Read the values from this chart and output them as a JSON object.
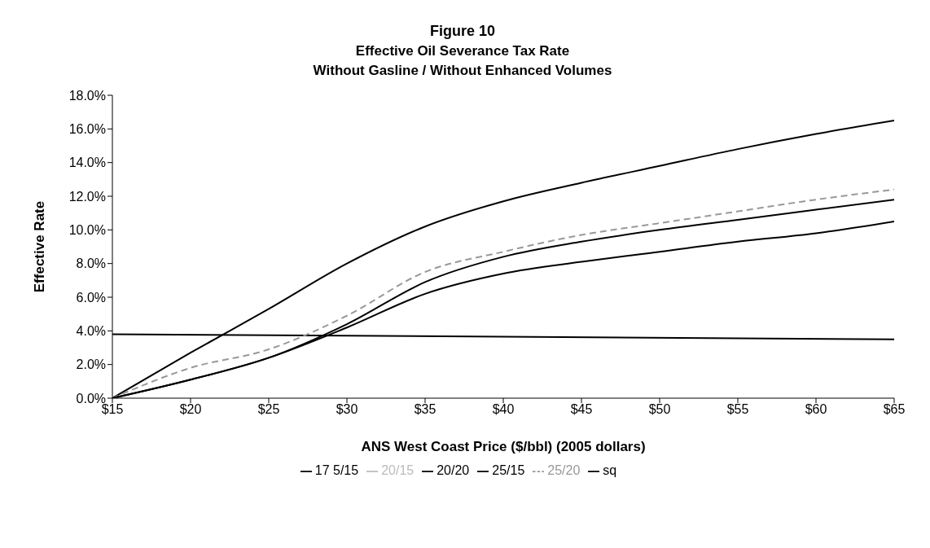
{
  "chart_data": {
    "type": "line",
    "title": "Figure 10",
    "subtitle": "Effective Oil Severance Tax Rate\nWithout Gasline / Without Enhanced Volumes",
    "xlabel": "ANS West Coast Price ($/bbl) (2005 dollars)",
    "ylabel": "Effective Rate",
    "x": [
      15,
      20,
      25,
      30,
      35,
      40,
      45,
      50,
      55,
      60,
      65
    ],
    "series": [
      {
        "name": "sq",
        "color": "#000000",
        "x": [
          15,
          65
        ],
        "values": [
          3.8,
          3.5
        ]
      },
      {
        "name": "25/15",
        "color": "#000000",
        "values": [
          0,
          2.7,
          5.3,
          8.0,
          10.2,
          11.7,
          12.8,
          13.8,
          14.8,
          15.7,
          16.5
        ]
      },
      {
        "name": "25/20",
        "color": "#999999",
        "line_style": "dashed",
        "values": [
          0,
          1.8,
          2.9,
          4.9,
          7.5,
          8.7,
          9.7,
          10.4,
          11.1,
          11.8,
          12.4
        ]
      },
      {
        "name": "20/15",
        "color": "#bbbbbb",
        "values": [
          null,
          null,
          null,
          null,
          null,
          null,
          null,
          null,
          null,
          null,
          null
        ]
      },
      {
        "name": "20/20",
        "color": "#000000",
        "values": [
          0,
          1.1,
          2.4,
          4.4,
          6.9,
          8.4,
          9.3,
          10.0,
          10.6,
          11.2,
          11.8
        ]
      },
      {
        "name": "17 5/15",
        "color": "#000000",
        "values": [
          0,
          1.1,
          2.4,
          4.2,
          6.2,
          7.4,
          8.1,
          8.7,
          9.3,
          9.8,
          10.5
        ]
      }
    ],
    "xlim": [
      15,
      65
    ],
    "xticks": [
      {
        "value": 15,
        "label": "$15"
      },
      {
        "value": 20,
        "label": "$20"
      },
      {
        "value": 25,
        "label": "$25"
      },
      {
        "value": 30,
        "label": "$30"
      },
      {
        "value": 35,
        "label": "$35"
      },
      {
        "value": 40,
        "label": "$40"
      },
      {
        "value": 45,
        "label": "$45"
      },
      {
        "value": 50,
        "label": "$50"
      },
      {
        "value": 55,
        "label": "$55"
      },
      {
        "value": 60,
        "label": "$60"
      },
      {
        "value": 65,
        "label": "$65"
      }
    ],
    "ylim": [
      0,
      18
    ],
    "yticks": [
      {
        "value": 0,
        "label": "0.0%"
      },
      {
        "value": 2,
        "label": "2.0%"
      },
      {
        "value": 4,
        "label": "4.0%"
      },
      {
        "value": 6,
        "label": "6.0%"
      },
      {
        "value": 8,
        "label": "8.0%"
      },
      {
        "value": 10,
        "label": "10.0%"
      },
      {
        "value": 12,
        "label": "12.0%"
      },
      {
        "value": 14,
        "label": "14.0%"
      },
      {
        "value": 16,
        "label": "16.0%"
      },
      {
        "value": 18,
        "label": "18.0%"
      }
    ],
    "grid": false,
    "legend": "bottom",
    "marker": "none",
    "line_style": "solid"
  }
}
